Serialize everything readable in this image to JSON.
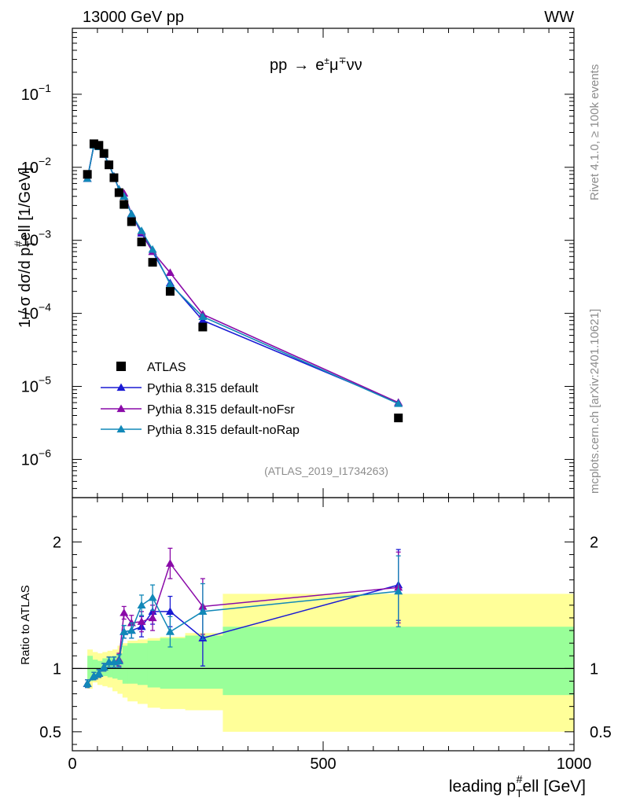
{
  "header": {
    "left": "13000 GeV pp",
    "right": "WW"
  },
  "side_text": {
    "rivet": "Rivet 4.1.0, ≥ 100k events",
    "mcplots": "mcplots.cern.ch [arXiv:2401.10621]"
  },
  "process": {
    "base": "pp",
    "arrow": "→",
    "final": "e",
    "pm": "±",
    "mu": "μ",
    "mp": "∓",
    "nunu": "νν"
  },
  "analysis_id": "(ATLAS_2019_I1734263)",
  "colors": {
    "data": "#000000",
    "default": "#1a1ad4",
    "noFsr": "#8a0aa8",
    "noRap": "#1188b8",
    "band_yellow": "#ffff99",
    "band_green": "#99ff99"
  },
  "chart_data": [
    {
      "type": "line",
      "panel": "main",
      "ylabel": {
        "prefix": "1 / σ  dσ/d p",
        "sub": "T",
        "sup": "#",
        "suffix": "ell [1/GeV]"
      },
      "yscale": "log",
      "ylim": [
        3e-07,
        0.8
      ],
      "xlim": [
        0,
        1000
      ],
      "yticks": [
        {
          "value": 1e-06,
          "base": "10",
          "exp": "−6"
        },
        {
          "value": 1e-05,
          "base": "10",
          "exp": "−5"
        },
        {
          "value": 0.0001,
          "base": "10",
          "exp": "−4"
        },
        {
          "value": 0.001,
          "base": "10",
          "exp": "−3"
        },
        {
          "value": 0.01,
          "base": "10",
          "exp": "−2"
        },
        {
          "value": 0.1,
          "base": "10",
          "exp": "−1"
        }
      ],
      "x": [
        30,
        43,
        53,
        63,
        73,
        83,
        93,
        103,
        118,
        138,
        160,
        195,
        260,
        650
      ],
      "series": [
        {
          "name": "ATLAS",
          "key": "data",
          "style": "points",
          "values": [
            0.008,
            0.021,
            0.02,
            0.0155,
            0.0108,
            0.0072,
            0.0045,
            0.0031,
            0.0018,
            0.00095,
            0.0005,
            0.0002,
            6.5e-05,
            3.7e-06
          ]
        },
        {
          "name": "Pythia 8.315 default",
          "key": "default",
          "style": "line",
          "values": [
            0.007,
            0.02,
            0.019,
            0.015,
            0.011,
            0.0075,
            0.005,
            0.004,
            0.0023,
            0.00125,
            0.0007,
            0.00026,
            8e-05,
            6e-06
          ]
        },
        {
          "name": "Pythia 8.315 default-noFsr",
          "key": "noFsr",
          "style": "line",
          "values": [
            0.007,
            0.02,
            0.019,
            0.015,
            0.011,
            0.0075,
            0.005,
            0.0044,
            0.0023,
            0.0013,
            0.0007,
            0.00036,
            9.7e-05,
            6e-06
          ]
        },
        {
          "name": "Pythia 8.315 default-noRap",
          "key": "noRap",
          "style": "line",
          "values": [
            0.007,
            0.02,
            0.019,
            0.015,
            0.011,
            0.0075,
            0.005,
            0.004,
            0.0023,
            0.00135,
            0.00075,
            0.00025,
            9e-05,
            5.8e-06
          ]
        }
      ]
    },
    {
      "type": "line",
      "panel": "ratio",
      "ylabel": "Ratio to ATLAS",
      "xlabel": {
        "prefix": "leading p",
        "sub": "T",
        "sup": "#",
        "suffix": "ell [GeV]"
      },
      "ylim": [
        0.35,
        2.35
      ],
      "xlim": [
        0,
        1000
      ],
      "yticks": [
        0.5,
        1,
        2
      ],
      "ytick_labels": [
        "0.5",
        "1",
        "2"
      ],
      "xticks": [
        0,
        500,
        1000
      ],
      "xtick_labels": [
        "0",
        "500",
        "1000"
      ],
      "bin_edges": [
        30,
        40,
        50,
        60,
        70,
        80,
        90,
        100,
        110,
        130,
        150,
        175,
        225,
        300,
        1000
      ],
      "band_green": [
        [
          0.9,
          1.1
        ],
        [
          0.93,
          1.07
        ],
        [
          0.94,
          1.06
        ],
        [
          0.94,
          1.08
        ],
        [
          0.93,
          1.09
        ],
        [
          0.92,
          1.1
        ],
        [
          0.91,
          1.12
        ],
        [
          0.88,
          1.18
        ],
        [
          0.88,
          1.2
        ],
        [
          0.87,
          1.2
        ],
        [
          0.85,
          1.22
        ],
        [
          0.84,
          1.24
        ],
        [
          0.84,
          1.26
        ],
        [
          0.79,
          1.33
        ]
      ],
      "band_yellow": [
        [
          0.84,
          1.15
        ],
        [
          0.89,
          1.13
        ],
        [
          0.87,
          1.12
        ],
        [
          0.86,
          1.13
        ],
        [
          0.85,
          1.14
        ],
        [
          0.82,
          1.15
        ],
        [
          0.8,
          1.18
        ],
        [
          0.77,
          1.2
        ],
        [
          0.74,
          1.22
        ],
        [
          0.72,
          1.23
        ],
        [
          0.69,
          1.24
        ],
        [
          0.68,
          1.25
        ],
        [
          0.67,
          1.28
        ],
        [
          0.5,
          1.59
        ]
      ],
      "x": [
        30,
        43,
        53,
        63,
        73,
        83,
        93,
        103,
        118,
        138,
        160,
        195,
        260,
        650
      ],
      "series": [
        {
          "name": "Pythia 8.315 default",
          "key": "default",
          "values": [
            0.88,
            0.94,
            0.96,
            1.01,
            1.05,
            1.05,
            1.06,
            1.29,
            1.3,
            1.33,
            1.45,
            1.45,
            1.24,
            1.66
          ],
          "errors": [
            0.03,
            0.03,
            0.03,
            0.03,
            0.04,
            0.04,
            0.05,
            0.05,
            0.06,
            0.08,
            0.1,
            0.12,
            0.22,
            0.28
          ]
        },
        {
          "name": "Pythia 8.315 default-noFsr",
          "key": "noFsr",
          "values": [
            0.88,
            0.94,
            0.96,
            1.01,
            1.05,
            1.05,
            1.07,
            1.44,
            1.36,
            1.37,
            1.4,
            1.83,
            1.49,
            1.64
          ],
          "errors": [
            0.03,
            0.03,
            0.03,
            0.03,
            0.04,
            0.04,
            0.05,
            0.05,
            0.06,
            0.08,
            0.1,
            0.12,
            0.22,
            0.28
          ]
        },
        {
          "name": "Pythia 8.315 default-noRap",
          "key": "noRap",
          "values": [
            0.88,
            0.94,
            0.96,
            1.01,
            1.05,
            1.05,
            1.06,
            1.29,
            1.3,
            1.5,
            1.56,
            1.29,
            1.45,
            1.61
          ],
          "errors": [
            0.03,
            0.03,
            0.03,
            0.03,
            0.04,
            0.04,
            0.05,
            0.05,
            0.06,
            0.08,
            0.1,
            0.12,
            0.22,
            0.28
          ]
        }
      ]
    }
  ]
}
